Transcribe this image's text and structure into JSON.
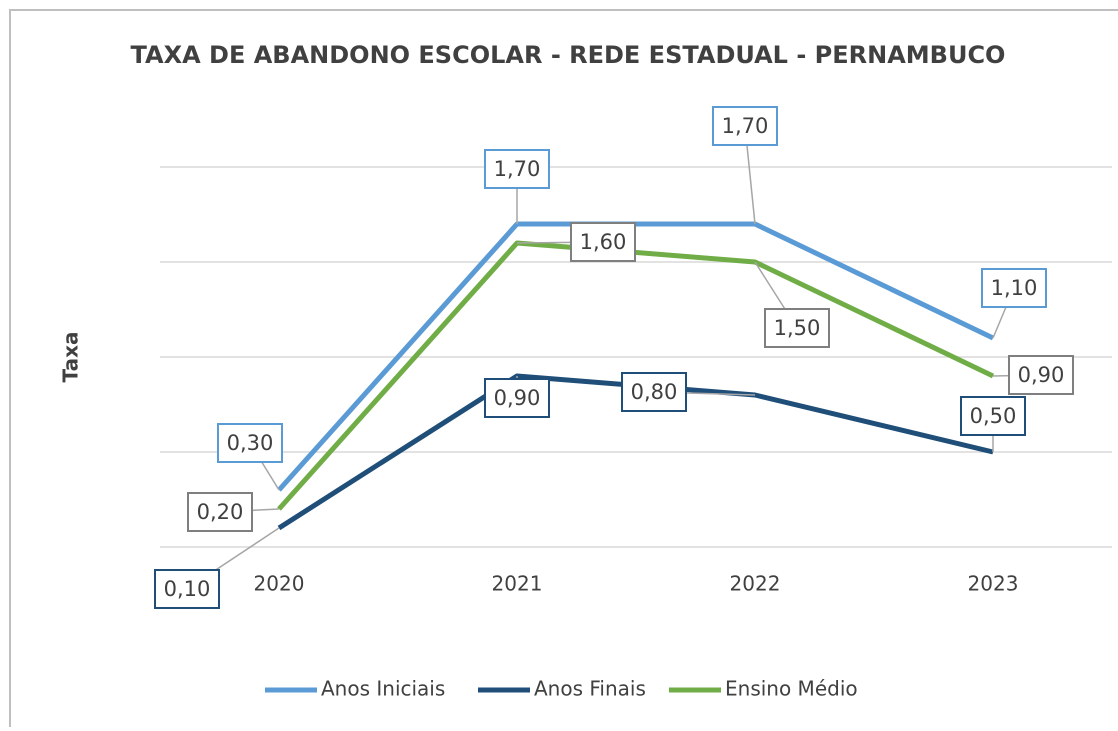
{
  "chart_data": {
    "type": "line",
    "title": "TAXA DE ABANDONO ESCOLAR - REDE ESTADUAL - PERNAMBUCO",
    "y_label": "Taxa",
    "categories": [
      "2020",
      "2021",
      "2022",
      "2023"
    ],
    "series": [
      {
        "name": "Anos Iniciais",
        "color": "#5b9bd5",
        "values": [
          0.3,
          1.7,
          1.7,
          1.1
        ],
        "value_labels": [
          "0,30",
          "1,70",
          "1,70",
          "1,10"
        ]
      },
      {
        "name": "Anos Finais",
        "color": "#1f4e79",
        "values": [
          0.1,
          0.9,
          0.8,
          0.5
        ],
        "value_labels": [
          "0,10",
          "0,90",
          "0,80",
          "0,50"
        ]
      },
      {
        "name": "Ensino Médio",
        "color": "#70ad47",
        "values": [
          0.2,
          1.6,
          1.5,
          0.9
        ],
        "value_labels": [
          "0,20",
          "1,60",
          "1,50",
          "0,90"
        ]
      }
    ],
    "ylim": [
      0,
      2.2
    ],
    "yticks": [
      0,
      0.5,
      1,
      1.5,
      2
    ],
    "grid": true,
    "legend": "bottom"
  }
}
